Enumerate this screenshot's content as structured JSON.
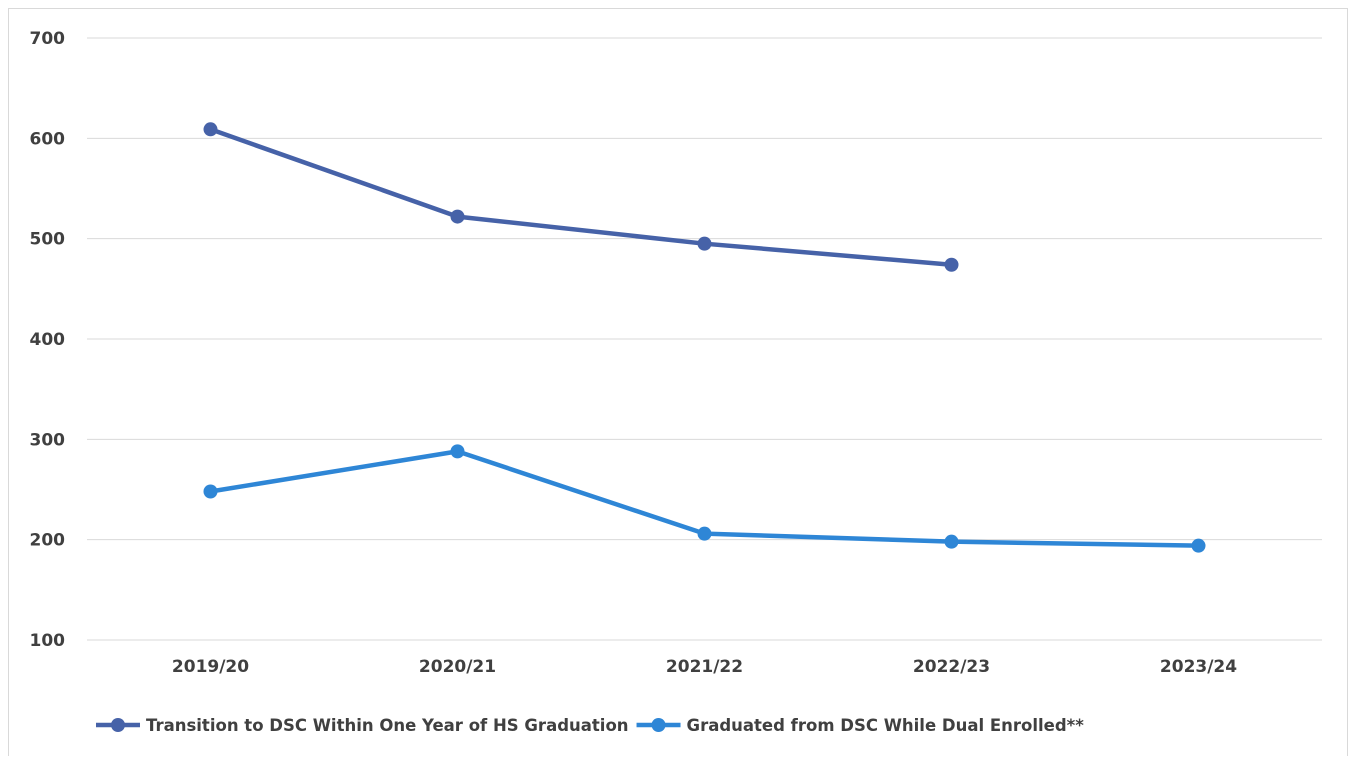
{
  "chart_data": {
    "type": "line",
    "categories": [
      "2019/20",
      "2020/21",
      "2021/22",
      "2022/23",
      "2023/24"
    ],
    "ylim": [
      100,
      700
    ],
    "yticks": [
      100,
      200,
      300,
      400,
      500,
      600,
      700
    ],
    "grid": true,
    "legend_position": "bottom",
    "series": [
      {
        "name": "Transition to DSC Within One Year of HS Graduation",
        "color": "#4662a8",
        "values": [
          609,
          522,
          495,
          474,
          null
        ]
      },
      {
        "name": "Graduated from DSC While Dual Enrolled**",
        "color": "#2e86d6",
        "values": [
          248,
          288,
          206,
          198,
          194
        ]
      }
    ]
  },
  "colors": {
    "grid": "#d9d9d9",
    "text": "#404040"
  }
}
